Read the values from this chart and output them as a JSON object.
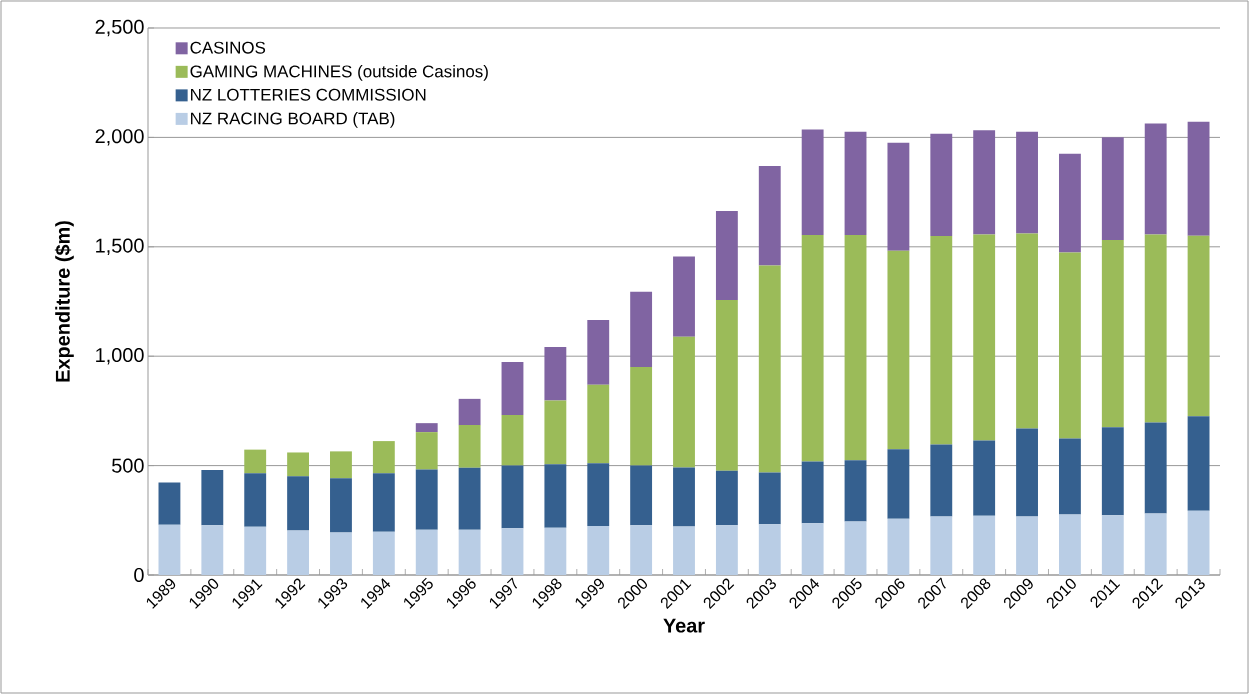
{
  "chart_data": {
    "type": "bar",
    "stacked": true,
    "xlabel": "Year",
    "ylabel": "Expenditure ($m)",
    "categories": [
      "1989",
      "1990",
      "1991",
      "1992",
      "1993",
      "1994",
      "1995",
      "1996",
      "1997",
      "1998",
      "1999",
      "2000",
      "2001",
      "2002",
      "2003",
      "2004",
      "2005",
      "2006",
      "2007",
      "2008",
      "2009",
      "2010",
      "2011",
      "2012",
      "2013"
    ],
    "series": [
      {
        "name": "NZ RACING BOARD (TAB)",
        "color": "#b9cde5",
        "values": [
          230,
          227,
          221,
          203,
          194,
          198,
          207,
          207,
          214,
          216,
          224,
          227,
          222,
          227,
          232,
          236,
          245,
          257,
          267,
          271,
          267,
          276,
          273,
          281,
          294
        ]
      },
      {
        "name": "NZ LOTTERIES COMMISSION",
        "color": "#35608f",
        "values": [
          193,
          253,
          244,
          248,
          248,
          267,
          275,
          283,
          286,
          290,
          287,
          273,
          269,
          250,
          236,
          283,
          279,
          318,
          329,
          344,
          402,
          348,
          402,
          416,
          431
        ]
      },
      {
        "name": "GAMING MACHINES (outside Casinos)",
        "color": "#9bbb59",
        "values": [
          null,
          null,
          108,
          109,
          123,
          147,
          171,
          195,
          231,
          292,
          359,
          451,
          598,
          780,
          946,
          1035,
          1030,
          907,
          953,
          941,
          892,
          850,
          856,
          859,
          825
        ]
      },
      {
        "name": "CASINOS",
        "color": "#8064a2",
        "values": [
          null,
          null,
          null,
          null,
          null,
          null,
          41,
          120,
          242,
          244,
          295,
          343,
          367,
          407,
          455,
          482,
          472,
          493,
          468,
          477,
          465,
          451,
          470,
          507,
          521
        ]
      }
    ],
    "ylim": [
      0,
      2500
    ],
    "yticks": [
      0,
      500,
      {
        "value": 1000,
        "label": "1,000"
      },
      {
        "value": 1500,
        "label": "1,500"
      },
      {
        "value": 2000,
        "label": "2,000"
      },
      {
        "value": 2500,
        "label": "2,500"
      }
    ],
    "grid": "y",
    "legend": "top left"
  }
}
